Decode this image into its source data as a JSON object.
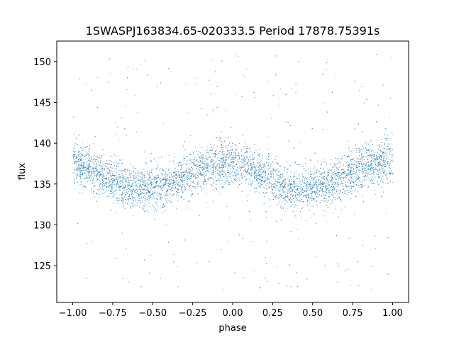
{
  "chart_data": {
    "type": "scatter",
    "title": "1SWASPJ163834.65-020333.5 Period 17878.75391s",
    "xlabel": "phase",
    "ylabel": "flux",
    "xlim": [
      -1.1,
      1.1
    ],
    "ylim": [
      120.5,
      152.5
    ],
    "xticks": [
      -1.0,
      -0.75,
      -0.5,
      -0.25,
      0.0,
      0.25,
      0.5,
      0.75,
      1.0
    ],
    "xtick_labels": [
      "−1.00",
      "−0.75",
      "−0.50",
      "−0.25",
      "0.00",
      "0.25",
      "0.50",
      "0.75",
      "1.00"
    ],
    "yticks": [
      125,
      130,
      135,
      140,
      145,
      150
    ],
    "ytick_labels": [
      "125",
      "130",
      "135",
      "140",
      "145",
      "150"
    ],
    "grid": false,
    "point_color": "#1f77b4",
    "series": [
      {
        "phase_range": [
          -1.0,
          1.0
        ],
        "trend_x": [
          -1.0,
          -0.9,
          -0.8,
          -0.7,
          -0.6,
          -0.5,
          -0.4,
          -0.3,
          -0.2,
          -0.1,
          0.0,
          0.1,
          0.2,
          0.3,
          0.4,
          0.5,
          0.6,
          0.7,
          0.8,
          0.9,
          1.0
        ],
        "trend_y": [
          137.5,
          137.0,
          136.0,
          135.0,
          134.5,
          134.5,
          135.0,
          136.0,
          137.0,
          137.5,
          137.5,
          137.0,
          136.0,
          135.0,
          134.5,
          134.5,
          135.0,
          136.0,
          137.0,
          137.5,
          137.5
        ],
        "scatter_sd": 1.3,
        "outlier_range": [
          122,
          151
        ]
      }
    ]
  }
}
